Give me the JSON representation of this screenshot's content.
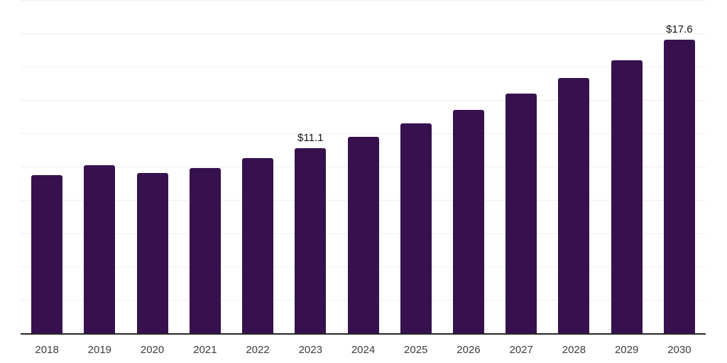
{
  "chart_data": {
    "type": "bar",
    "title": "",
    "xlabel": "",
    "ylabel": "",
    "categories": [
      "2018",
      "2019",
      "2020",
      "2021",
      "2022",
      "2023",
      "2024",
      "2025",
      "2026",
      "2027",
      "2028",
      "2029",
      "2030"
    ],
    "values": [
      9.5,
      10.1,
      9.6,
      9.9,
      10.5,
      11.1,
      11.8,
      12.6,
      13.4,
      14.4,
      15.3,
      16.4,
      17.6
    ],
    "data_labels": [
      "",
      "",
      "",
      "",
      "",
      "$11.1",
      "",
      "",
      "",
      "",
      "",
      "",
      "$17.6"
    ],
    "value_prefix": "$",
    "ylim": [
      0,
      20
    ],
    "grid_step": 2,
    "grid": true,
    "legend": false,
    "y_axis_tick_labels_shown": false,
    "colors": {
      "bar": "#36114e",
      "grid": "#efefef",
      "axis_line": "#262626",
      "tick_label": "#3d3d3d",
      "data_label": "#141414"
    }
  }
}
